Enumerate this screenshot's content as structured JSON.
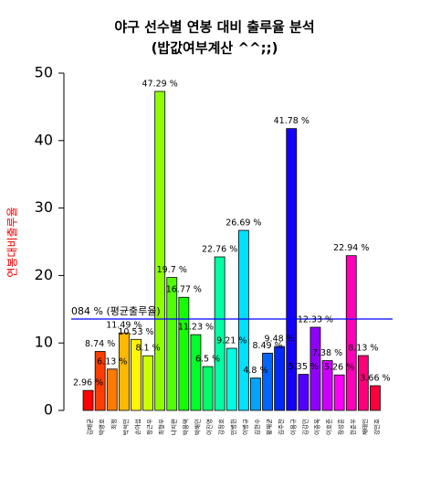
{
  "chart_data": {
    "type": "bar",
    "title": "야구 선수별 연봉 대비 출루율 분석",
    "subtitle": "(밥값여부계산 ^^;;)",
    "y_label": "연봉대비출루율",
    "categories": [
      "김태균",
      "박병호",
      "최정",
      "박석민",
      "손아섭",
      "정근우",
      "최형우",
      "나지완",
      "박용택",
      "박해민",
      "이진영",
      "강정호",
      "민병헌",
      "이병규",
      "김현수",
      "황재균",
      "김주찬",
      "이용규",
      "김강민",
      "이종욱",
      "이호준",
      "정성훈",
      "한준우",
      "채태인",
      "강민호"
    ],
    "values": [
      2.96,
      8.74,
      6.13,
      11.49,
      10.53,
      8.1,
      47.29,
      19.7,
      16.77,
      11.23,
      6.5,
      22.76,
      9.21,
      26.69,
      4.8,
      8.49,
      9.48,
      41.78,
      5.35,
      12.33,
      7.38,
      5.26,
      22.94,
      8.13,
      3.66
    ],
    "value_labels": [
      "2.96 %",
      "8.74 %",
      "6.13 %",
      "11.49 %",
      "10.53 %",
      "8.1 %",
      "47.29 %",
      "19.7 %",
      "16.77 %",
      "11.23 %",
      "6.5 %",
      "22.76 %",
      "9.21 %",
      "26.69 %",
      "4.8 %",
      "8.49 %",
      "9.48 %",
      "41.78 %",
      "5.35 %",
      "12.33 %",
      "7.38 %",
      "5.26 %",
      "22.94 %",
      "8.13 %",
      "3.66 %"
    ],
    "colors": [
      "#ff0000",
      "#ff3d00",
      "#ff7a00",
      "#ffb800",
      "#fff500",
      "#ccff00",
      "#8fff00",
      "#52ff00",
      "#14ff00",
      "#00ff29",
      "#00ff66",
      "#00ffa3",
      "#00ffe0",
      "#00e0ff",
      "#00a3ff",
      "#0066ff",
      "#0029ff",
      "#1400ff",
      "#5200ff",
      "#8f00ff",
      "#cc00ff",
      "#ff00f5",
      "#ff00b8",
      "#ff007a",
      "#ff003d"
    ],
    "average": {
      "value": 13.55,
      "label": "084 % (평균출루율)"
    },
    "average_color": "#0000ff",
    "ylim": [
      0,
      50
    ],
    "yticks": [
      0,
      10,
      20,
      30,
      40,
      50
    ]
  }
}
